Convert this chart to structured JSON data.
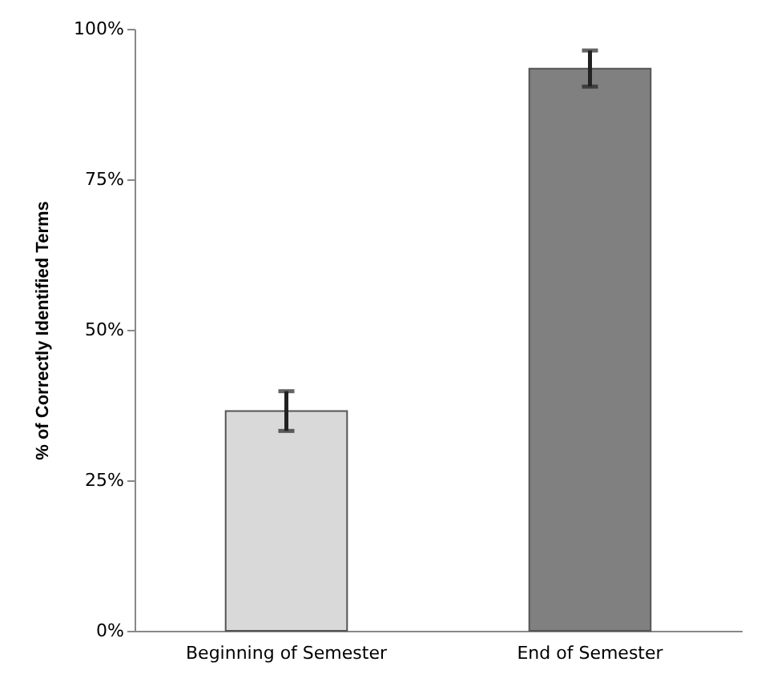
{
  "chart_data": {
    "type": "bar",
    "ylabel": "% of Correctly Identified Terms",
    "categories": [
      "Beginning of Semester",
      "End of Semester"
    ],
    "values": [
      36.5,
      93.4
    ],
    "colors": [
      "#d9d9d9",
      "#808080"
    ],
    "errors": [
      3.3,
      3
    ],
    "ylim": [
      0,
      100
    ],
    "yticks": [
      {
        "value": 0,
        "label": "0%"
      },
      {
        "value": 25,
        "label": "25%"
      },
      {
        "value": 50,
        "label": "50%"
      },
      {
        "value": 75,
        "label": "75%"
      },
      {
        "value": 100,
        "label": "100%"
      }
    ],
    "grid": false
  }
}
